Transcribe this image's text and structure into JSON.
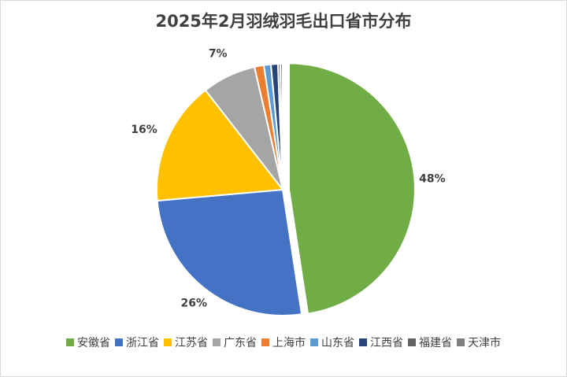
{
  "chart_data": {
    "type": "pie",
    "title": "2025年2月羽绒羽毛出口省市分布",
    "categories": [
      "安徽省",
      "浙江省",
      "江苏省",
      "广东省",
      "上海市",
      "山东省",
      "江西省",
      "福建省",
      "天津市"
    ],
    "values": [
      47.6,
      26.0,
      15.9,
      6.9,
      1.2,
      0.9,
      0.9,
      0.3,
      0.3
    ],
    "data_labels": [
      "48%",
      "26%",
      "16%",
      "7%",
      "",
      "",
      "",
      "",
      ""
    ],
    "colors": [
      "#70ad47",
      "#4472c4",
      "#ffc000",
      "#a5a5a5",
      "#ed7d31",
      "#5b9bd5",
      "#264478",
      "#636363",
      "#7f7f7f"
    ],
    "exploded": [
      "安徽省"
    ],
    "legend_position": "bottom"
  }
}
